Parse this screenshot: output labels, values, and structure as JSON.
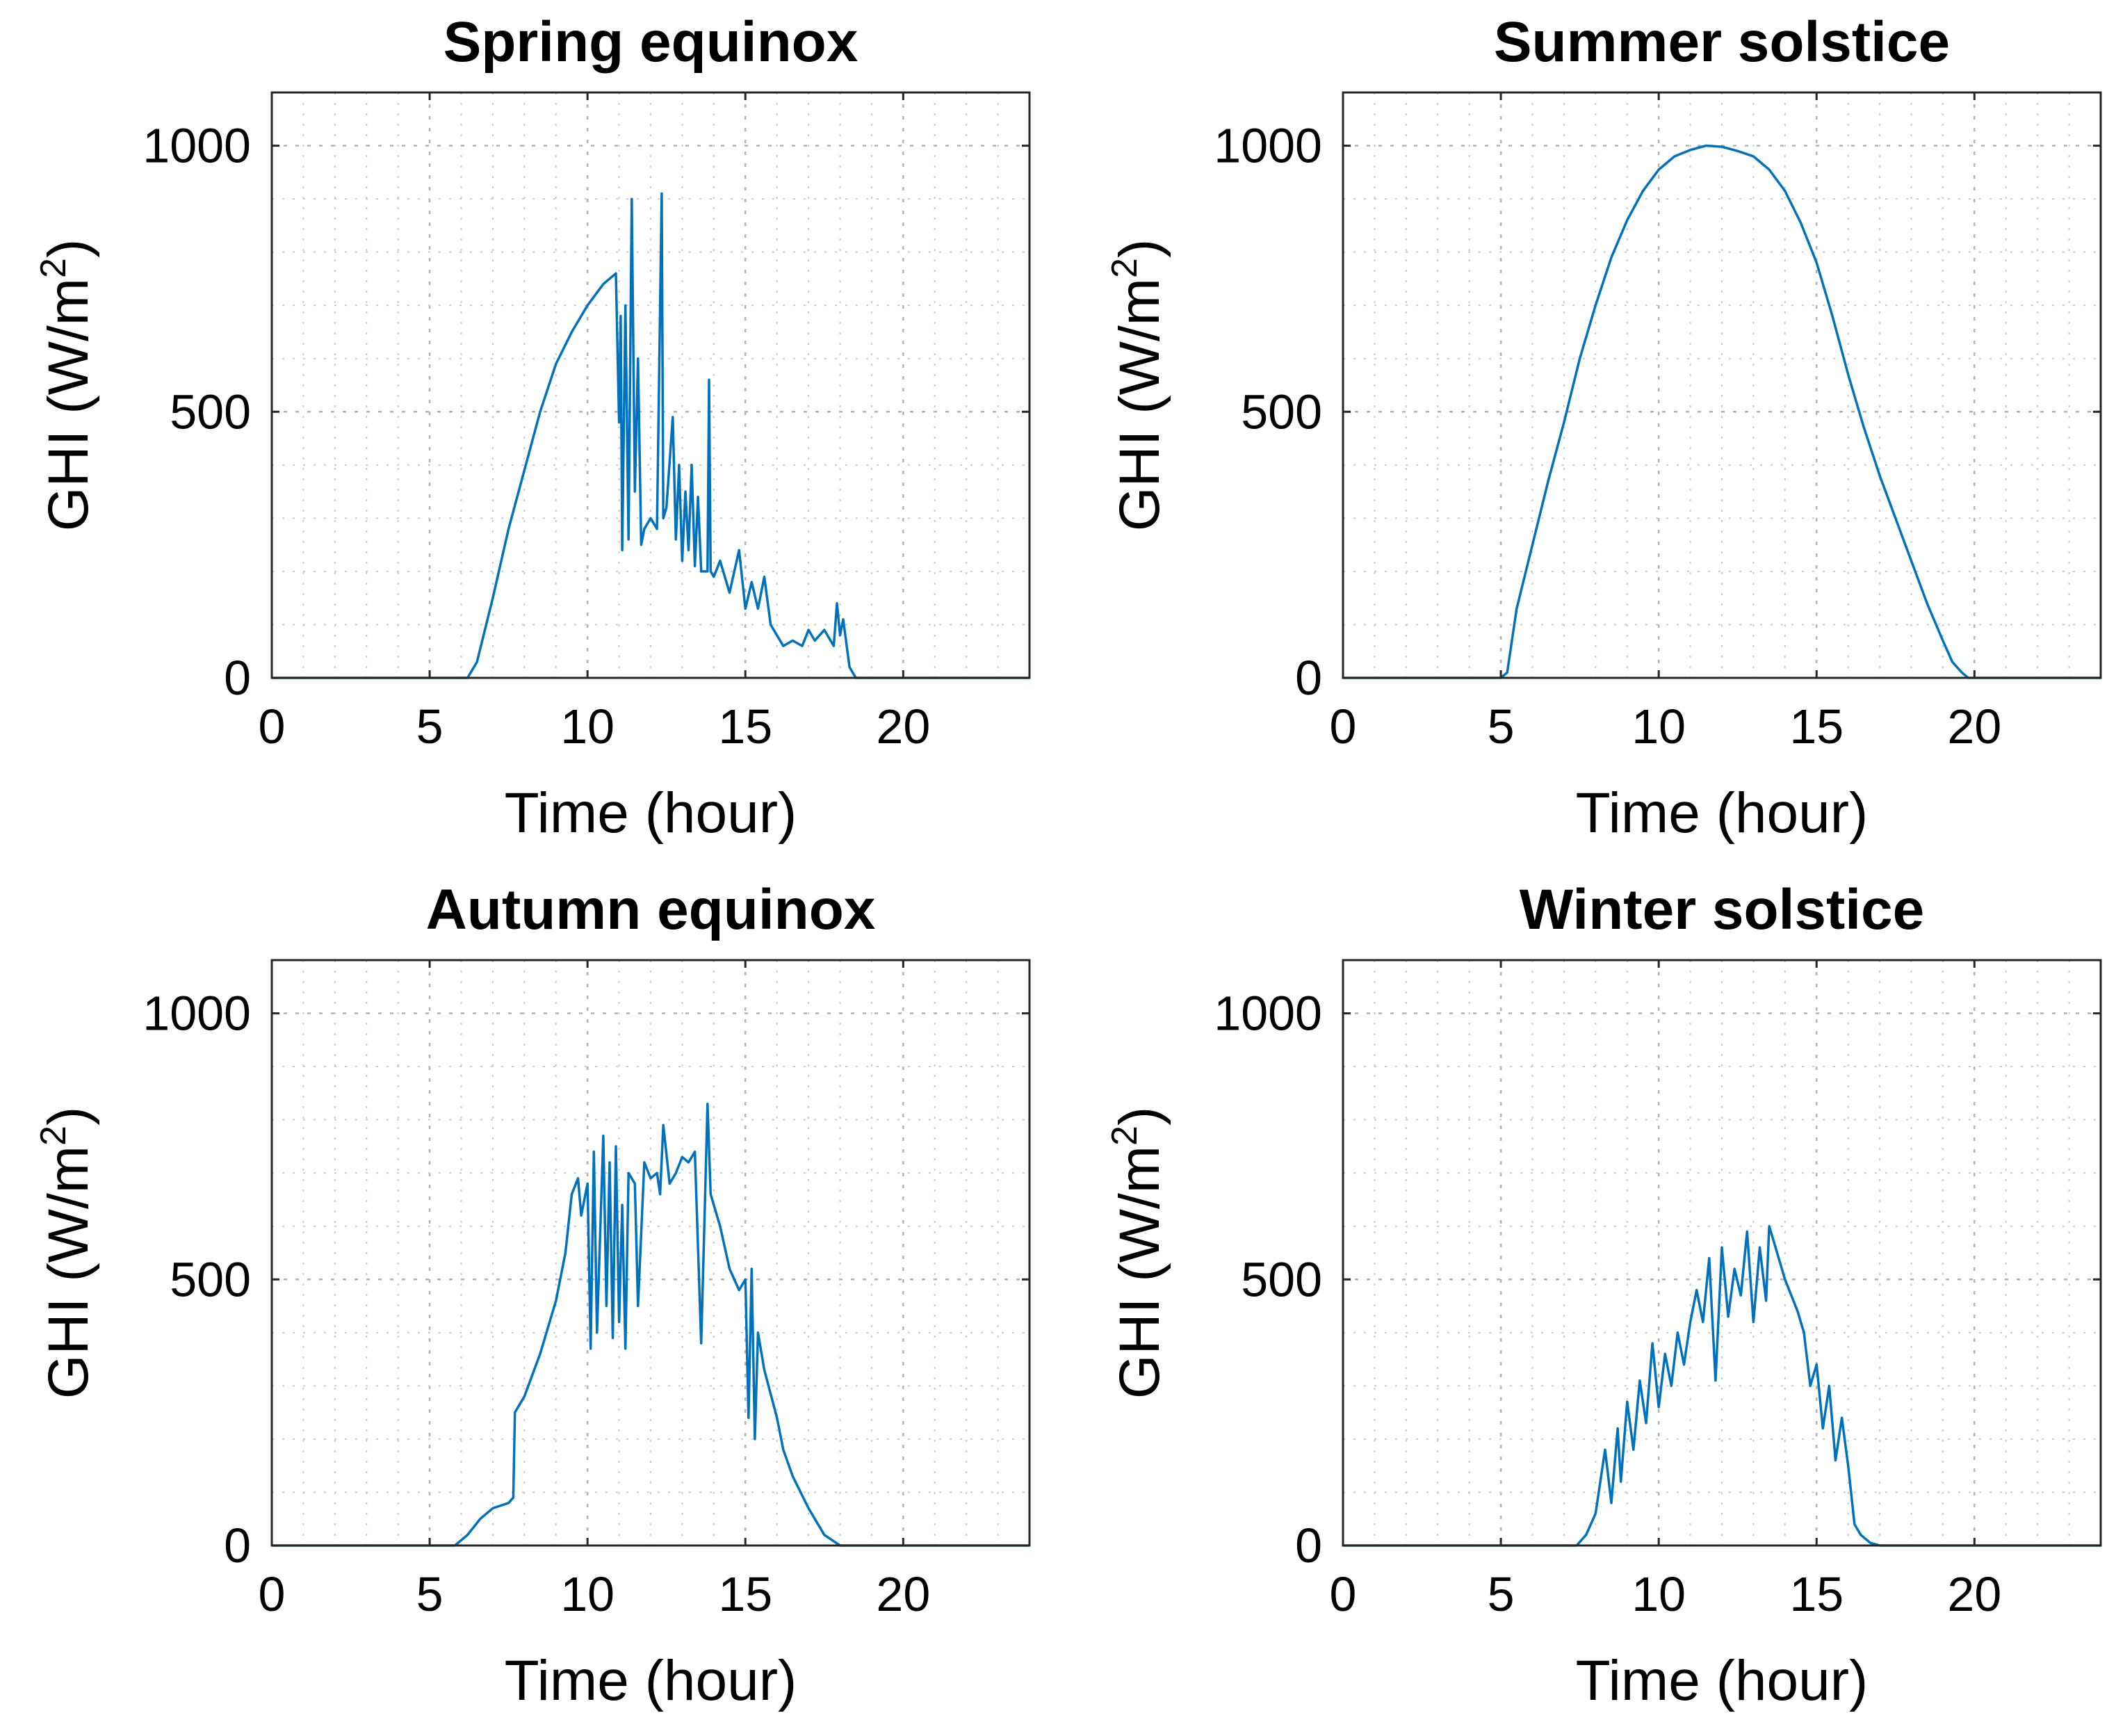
{
  "chart_data": [
    {
      "type": "line",
      "title": "Spring equinox",
      "xlabel": "Time (hour)",
      "ylabel_main": "GHI (W/m",
      "ylabel_sup": "2",
      "ylabel_close": ")",
      "xlim": [
        0,
        24
      ],
      "ylim": [
        0,
        1100
      ],
      "xticks": [
        0,
        5,
        10,
        15,
        20
      ],
      "yticks": [
        0,
        500,
        1000
      ],
      "grid": true,
      "series": [
        {
          "name": "GHI",
          "color": "#0072bd",
          "x": [
            0,
            6.2,
            6.5,
            7.0,
            7.5,
            8.0,
            8.5,
            9.0,
            9.5,
            10.0,
            10.5,
            10.9,
            11.0,
            11.05,
            11.1,
            11.2,
            11.3,
            11.4,
            11.5,
            11.6,
            11.7,
            11.8,
            12.0,
            12.2,
            12.35,
            12.4,
            12.5,
            12.7,
            12.8,
            12.9,
            13.0,
            13.1,
            13.2,
            13.3,
            13.4,
            13.5,
            13.6,
            13.8,
            13.85,
            13.9,
            14.0,
            14.2,
            14.5,
            14.8,
            15.0,
            15.2,
            15.4,
            15.6,
            15.8,
            16.0,
            16.2,
            16.5,
            16.8,
            17.0,
            17.2,
            17.5,
            17.8,
            17.9,
            18.0,
            18.1,
            18.3,
            18.5,
            24
          ],
          "y": [
            0,
            0,
            30,
            150,
            280,
            390,
            500,
            590,
            650,
            700,
            740,
            760,
            480,
            680,
            240,
            700,
            260,
            900,
            350,
            600,
            250,
            280,
            300,
            280,
            910,
            300,
            320,
            490,
            260,
            400,
            220,
            350,
            240,
            400,
            210,
            340,
            200,
            200,
            560,
            200,
            190,
            220,
            160,
            240,
            130,
            180,
            130,
            190,
            100,
            80,
            60,
            70,
            60,
            90,
            70,
            90,
            60,
            140,
            80,
            110,
            20,
            0,
            0
          ]
        }
      ]
    },
    {
      "type": "line",
      "title": "Summer solstice",
      "xlabel": "Time (hour)",
      "ylabel_main": "GHI (W/m",
      "ylabel_sup": "2",
      "ylabel_close": ")",
      "xlim": [
        0,
        24
      ],
      "ylim": [
        0,
        1100
      ],
      "xticks": [
        0,
        5,
        10,
        15,
        20
      ],
      "yticks": [
        0,
        500,
        1000
      ],
      "grid": true,
      "series": [
        {
          "name": "GHI",
          "color": "#0072bd",
          "x": [
            0,
            5.0,
            5.2,
            5.5,
            6.0,
            6.5,
            7.0,
            7.5,
            8.0,
            8.5,
            9.0,
            9.5,
            10.0,
            10.5,
            11.0,
            11.5,
            12.0,
            12.5,
            13.0,
            13.5,
            14.0,
            14.5,
            15.0,
            15.5,
            16.0,
            16.5,
            17.0,
            17.5,
            18.0,
            18.5,
            19.0,
            19.3,
            19.6,
            19.8,
            24
          ],
          "y": [
            0,
            0,
            10,
            130,
            250,
            370,
            480,
            600,
            700,
            790,
            860,
            915,
            955,
            980,
            992,
            1000,
            998,
            990,
            980,
            955,
            915,
            855,
            780,
            680,
            570,
            470,
            380,
            300,
            220,
            140,
            70,
            30,
            10,
            0,
            0
          ]
        }
      ]
    },
    {
      "type": "line",
      "title": "Autumn equinox",
      "xlabel": "Time (hour)",
      "ylabel_main": "GHI (W/m",
      "ylabel_sup": "2",
      "ylabel_close": ")",
      "xlim": [
        0,
        24
      ],
      "ylim": [
        0,
        1100
      ],
      "xticks": [
        0,
        5,
        10,
        15,
        20
      ],
      "yticks": [
        0,
        500,
        1000
      ],
      "grid": true,
      "series": [
        {
          "name": "GHI",
          "color": "#0072bd",
          "x": [
            0,
            5.8,
            6.2,
            6.6,
            7.0,
            7.5,
            7.65,
            7.7,
            8.0,
            8.5,
            9.0,
            9.3,
            9.5,
            9.7,
            9.8,
            10.0,
            10.1,
            10.2,
            10.3,
            10.5,
            10.6,
            10.7,
            10.8,
            10.9,
            11.0,
            11.1,
            11.2,
            11.3,
            11.5,
            11.6,
            11.8,
            12.0,
            12.2,
            12.3,
            12.4,
            12.6,
            12.8,
            13.0,
            13.2,
            13.4,
            13.6,
            13.7,
            13.8,
            13.9,
            14.0,
            14.2,
            14.5,
            14.8,
            15.0,
            15.1,
            15.2,
            15.3,
            15.4,
            15.6,
            16.0,
            16.2,
            16.5,
            17.0,
            17.5,
            18.0,
            18.3,
            24
          ],
          "y": [
            0,
            0,
            20,
            50,
            70,
            80,
            90,
            250,
            280,
            360,
            460,
            550,
            660,
            690,
            620,
            680,
            370,
            740,
            400,
            770,
            450,
            720,
            390,
            750,
            420,
            640,
            370,
            700,
            680,
            450,
            720,
            690,
            700,
            660,
            790,
            680,
            700,
            730,
            720,
            740,
            380,
            600,
            830,
            660,
            640,
            600,
            520,
            480,
            500,
            240,
            520,
            200,
            400,
            330,
            240,
            180,
            130,
            70,
            20,
            0,
            0,
            0
          ]
        }
      ]
    },
    {
      "type": "line",
      "title": "Winter solstice",
      "xlabel": "Time (hour)",
      "ylabel_main": "GHI (W/m",
      "ylabel_sup": "2",
      "ylabel_close": ")",
      "xlim": [
        0,
        24
      ],
      "ylim": [
        0,
        1100
      ],
      "xticks": [
        0,
        5,
        10,
        15,
        20
      ],
      "yticks": [
        0,
        500,
        1000
      ],
      "grid": true,
      "series": [
        {
          "name": "GHI",
          "color": "#0072bd",
          "x": [
            0,
            7.4,
            7.7,
            8.0,
            8.3,
            8.5,
            8.7,
            8.8,
            9.0,
            9.2,
            9.4,
            9.6,
            9.8,
            10.0,
            10.2,
            10.4,
            10.6,
            10.8,
            11.0,
            11.2,
            11.4,
            11.6,
            11.8,
            12.0,
            12.2,
            12.4,
            12.6,
            12.8,
            13.0,
            13.2,
            13.4,
            13.5,
            13.6,
            13.8,
            14.0,
            14.2,
            14.4,
            14.6,
            14.8,
            15.0,
            15.2,
            15.4,
            15.6,
            15.8,
            16.0,
            16.2,
            16.4,
            16.7,
            17.0,
            17.2,
            24
          ],
          "y": [
            0,
            0,
            20,
            60,
            180,
            80,
            220,
            120,
            270,
            180,
            310,
            230,
            380,
            260,
            360,
            300,
            400,
            340,
            420,
            480,
            420,
            540,
            310,
            560,
            430,
            520,
            470,
            590,
            420,
            560,
            460,
            600,
            580,
            540,
            500,
            470,
            440,
            400,
            300,
            340,
            220,
            300,
            160,
            240,
            150,
            40,
            20,
            5,
            0,
            0,
            0
          ]
        }
      ]
    }
  ]
}
